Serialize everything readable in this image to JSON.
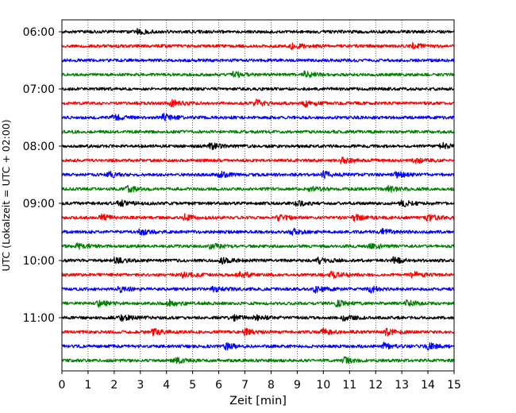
{
  "chart_data": {
    "type": "line",
    "title": "",
    "xlabel": "Zeit  [min]",
    "ylabel": "UTC (Lokalzeit = UTC + 02:00)",
    "xlim": [
      0,
      15
    ],
    "x_ticks": [
      0,
      1,
      2,
      3,
      4,
      5,
      6,
      7,
      8,
      9,
      10,
      11,
      12,
      13,
      14,
      15
    ],
    "y_tick_labels": [
      "06:00",
      "07:00",
      "08:00",
      "09:00",
      "10:00",
      "11:00"
    ],
    "grid": "vertical dotted lines at each minute",
    "legend": "none",
    "trace_interval_minutes": 15,
    "color_cycle": [
      "#000000",
      "#ff0000",
      "#0000ff",
      "#008000"
    ],
    "traces": [
      {
        "start": "06:00",
        "color": "#000000",
        "events": [
          2.9
        ]
      },
      {
        "start": "06:15",
        "color": "#ff0000",
        "events": [
          8.8,
          13.4
        ]
      },
      {
        "start": "06:30",
        "color": "#0000ff",
        "events": []
      },
      {
        "start": "06:45",
        "color": "#008000",
        "events": [
          9.3,
          6.6
        ]
      },
      {
        "start": "07:00",
        "color": "#000000",
        "events": []
      },
      {
        "start": "07:15",
        "color": "#ff0000",
        "events": [
          4.2,
          7.4,
          9.3
        ]
      },
      {
        "start": "07:30",
        "color": "#0000ff",
        "events": [
          3.9,
          2.0
        ]
      },
      {
        "start": "07:45",
        "color": "#008000",
        "events": []
      },
      {
        "start": "08:00",
        "color": "#000000",
        "events": [
          5.7,
          14.5
        ]
      },
      {
        "start": "08:15",
        "color": "#ff0000",
        "events": [
          10.7,
          13.5
        ]
      },
      {
        "start": "08:30",
        "color": "#0000ff",
        "events": [
          1.8,
          6.0,
          10.0,
          12.8
        ]
      },
      {
        "start": "08:45",
        "color": "#008000",
        "events": [
          2.5,
          9.5,
          12.5
        ]
      },
      {
        "start": "09:00",
        "color": "#000000",
        "events": [
          2.2,
          9.0,
          13.0
        ]
      },
      {
        "start": "09:15",
        "color": "#ff0000",
        "events": [
          1.5,
          4.7,
          8.3,
          11.2,
          14.0
        ]
      },
      {
        "start": "09:30",
        "color": "#0000ff",
        "events": [
          3.0,
          8.8,
          12.2
        ]
      },
      {
        "start": "09:45",
        "color": "#008000",
        "events": [
          0.6,
          5.7,
          11.8
        ]
      },
      {
        "start": "10:00",
        "color": "#000000",
        "events": [
          2.0,
          6.1,
          9.8,
          12.7
        ]
      },
      {
        "start": "10:15",
        "color": "#ff0000",
        "events": [
          4.6,
          6.8,
          10.3,
          13.4
        ]
      },
      {
        "start": "10:30",
        "color": "#0000ff",
        "events": [
          2.2,
          5.8,
          9.7,
          11.8
        ]
      },
      {
        "start": "10:45",
        "color": "#008000",
        "events": [
          1.4,
          4.1,
          10.5,
          13.2
        ]
      },
      {
        "start": "11:00",
        "color": "#000000",
        "events": [
          2.3,
          6.5,
          7.4,
          10.8
        ]
      },
      {
        "start": "11:15",
        "color": "#ff0000",
        "events": [
          3.5,
          7.0,
          10.0,
          12.4
        ]
      },
      {
        "start": "11:30",
        "color": "#0000ff",
        "events": [
          6.3,
          12.3,
          14.0
        ]
      },
      {
        "start": "11:45",
        "color": "#008000",
        "events": [
          4.3,
          10.8
        ]
      }
    ]
  }
}
